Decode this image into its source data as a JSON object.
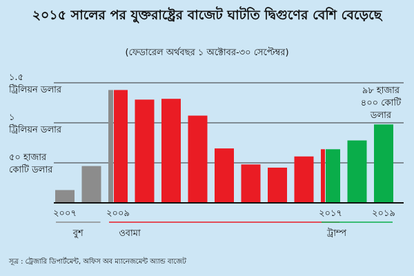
{
  "chart_data": {
    "type": "bar",
    "title": "২০১৫ সালের পর যুক্তরাষ্ট্রের বাজেট ঘাটতি দ্বিগুণের বেশি বেড়েছে",
    "subtitle": "(ফেডারেল অর্থবছর ১ অক্টোবর-৩০ সেপ্টেম্বর)",
    "source": "সূত্র : ট্রেজারি ডিপার্টমেন্ট, অফিস অব ম্যানেজমেন্ট অ্যান্ড বাজেট",
    "ylim": [
      0,
      1.5
    ],
    "ytick_labels": [
      {
        "value": 1.5,
        "lines": [
          "১.৫",
          "ট্রিলিয়ন ডলার"
        ]
      },
      {
        "value": 1.0,
        "lines": [
          "১",
          "ট্রিলিয়ন ডলার"
        ]
      },
      {
        "value": 0.5,
        "lines": [
          "৫০ হাজার",
          "কোটি ডলার"
        ]
      }
    ],
    "xtick_labels": [
      {
        "label": "২০০৭",
        "year": 2007
      },
      {
        "label": "২০০৯",
        "year": 2009
      },
      {
        "label": "২০১৭",
        "year": 2017
      },
      {
        "label": "২০১৯",
        "year": 2019
      }
    ],
    "bars": [
      {
        "year": 2007,
        "value": 0.16,
        "color": "#8c8c8c"
      },
      {
        "year": 2008,
        "value": 0.46,
        "color": "#8c8c8c"
      },
      {
        "year": 2009,
        "value": 1.41,
        "color": "#8c8c8c",
        "split": "#ea1c24"
      },
      {
        "year": 2010,
        "value": 1.29,
        "color": "#ea1c24"
      },
      {
        "year": 2011,
        "value": 1.3,
        "color": "#ea1c24"
      },
      {
        "year": 2012,
        "value": 1.09,
        "color": "#ea1c24"
      },
      {
        "year": 2013,
        "value": 0.68,
        "color": "#ea1c24"
      },
      {
        "year": 2014,
        "value": 0.48,
        "color": "#ea1c24"
      },
      {
        "year": 2015,
        "value": 0.44,
        "color": "#ea1c24"
      },
      {
        "year": 2016,
        "value": 0.58,
        "color": "#ea1c24"
      },
      {
        "year": 2017,
        "value": 0.67,
        "color": "#ea1c24",
        "split": "#0aad4a"
      },
      {
        "year": 2018,
        "value": 0.78,
        "color": "#0aad4a"
      },
      {
        "year": 2019,
        "value": 0.98,
        "color": "#0aad4a"
      }
    ],
    "annotation": {
      "year": 2019,
      "lines": [
        "৯৮ হাজার",
        "৪০০ কোটি",
        "ডলার"
      ]
    },
    "terms": [
      {
        "label": "বুশ",
        "start": 2007,
        "end": 2008,
        "color": "#8c8c8c"
      },
      {
        "label": "ওবামা",
        "start": 2009,
        "end": 2017,
        "color": "#ea1c24"
      },
      {
        "label": "ট্রাম্প",
        "start": 2017,
        "end": 2019,
        "color": "#0aad4a"
      }
    ],
    "grid": true,
    "colors": {
      "bush": "#8c8c8c",
      "obama": "#ea1c24",
      "trump": "#0aad4a",
      "background": "#cde6f5"
    }
  }
}
